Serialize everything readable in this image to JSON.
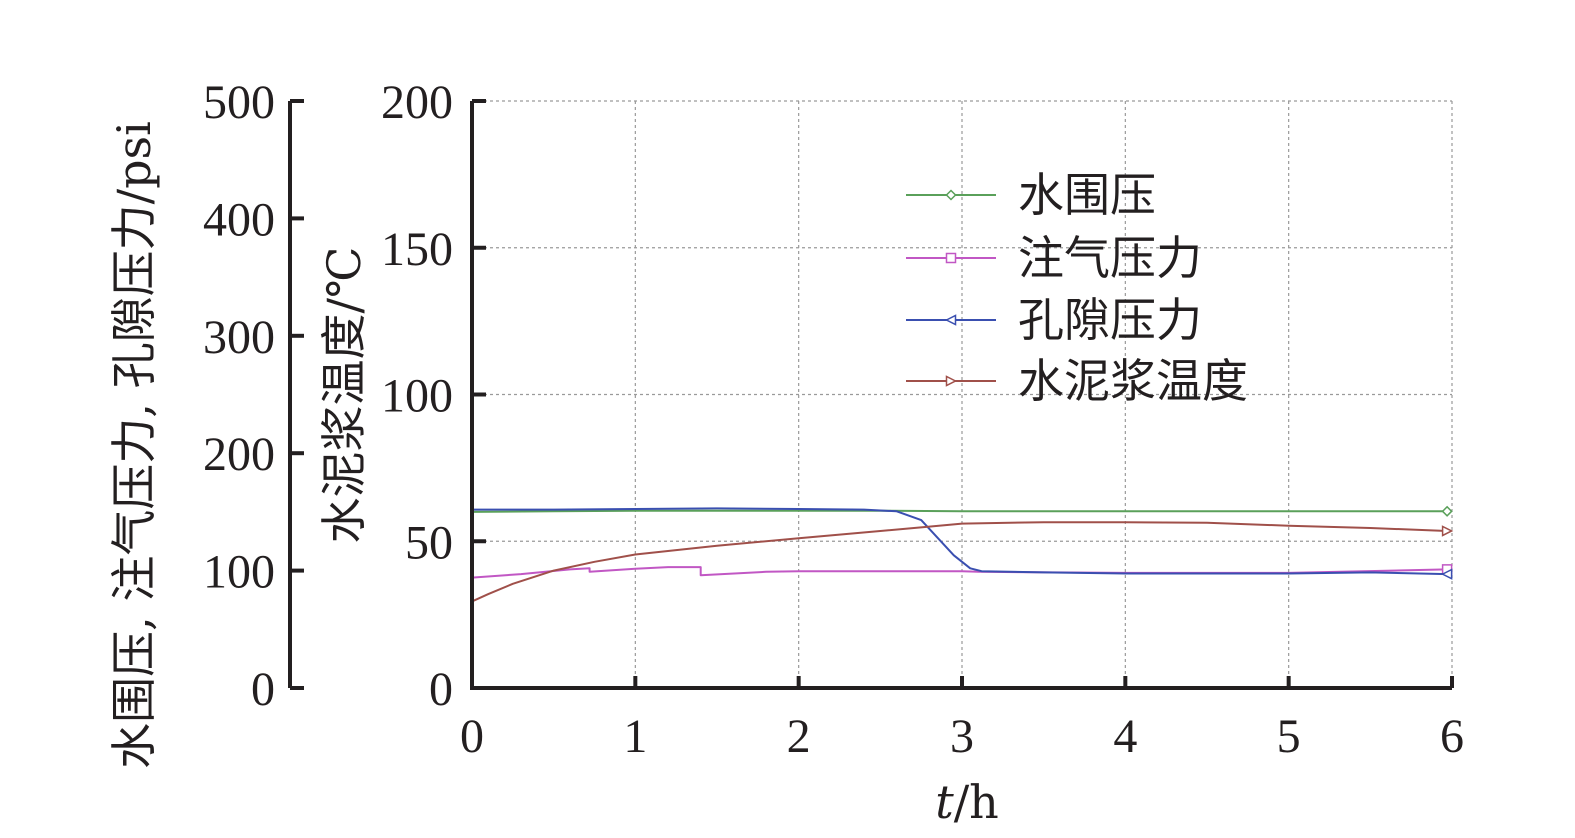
{
  "chart_data": {
    "type": "line",
    "xlabel_italic": "t",
    "xlabel_rest": "/h",
    "ylabel_right": "水泥浆温度/℃",
    "ylabel_left": "水围压, 注气压力, 孔隙压力/psi",
    "xlim": [
      0,
      6
    ],
    "ylim_right": [
      0,
      200
    ],
    "ylim_left": [
      0,
      500
    ],
    "x_ticks": [
      "0",
      "1",
      "2",
      "3",
      "4",
      "5",
      "6"
    ],
    "y_ticks_right": [
      "0",
      "50",
      "100",
      "150",
      "200"
    ],
    "y_ticks_left": [
      "0",
      "100",
      "200",
      "300",
      "400",
      "500"
    ],
    "grid": true,
    "legend_position": "upper-right",
    "series": [
      {
        "name": "水围压",
        "color": "#5aa05a",
        "marker": "diamond",
        "axis": "left",
        "points": [
          [
            0,
            150
          ],
          [
            0.5,
            150.5
          ],
          [
            1,
            151
          ],
          [
            1.5,
            151
          ],
          [
            2,
            151
          ],
          [
            2.5,
            151
          ],
          [
            3,
            150.5
          ],
          [
            3.5,
            150.5
          ],
          [
            4,
            150.5
          ],
          [
            4.5,
            150.5
          ],
          [
            5,
            150.5
          ],
          [
            5.5,
            150.5
          ],
          [
            5.97,
            150.5
          ]
        ]
      },
      {
        "name": "注气压力",
        "color": "#c157c4",
        "marker": "square",
        "axis": "left",
        "points": [
          [
            0,
            94
          ],
          [
            0.3,
            97
          ],
          [
            0.6,
            101
          ],
          [
            0.72,
            102
          ],
          [
            0.72,
            99
          ],
          [
            1,
            101.5
          ],
          [
            1.2,
            103
          ],
          [
            1.4,
            103
          ],
          [
            1.4,
            96
          ],
          [
            1.8,
            99
          ],
          [
            2,
            99.5
          ],
          [
            3,
            99.5
          ],
          [
            3.1,
            99
          ],
          [
            4,
            98
          ],
          [
            5,
            98
          ],
          [
            5.97,
            101
          ]
        ]
      },
      {
        "name": "孔隙压力",
        "color": "#3a4fb0",
        "marker": "triangle-left",
        "axis": "left",
        "points": [
          [
            0,
            152
          ],
          [
            0.5,
            152
          ],
          [
            1,
            152.5
          ],
          [
            1.5,
            153
          ],
          [
            2,
            152.5
          ],
          [
            2.4,
            152
          ],
          [
            2.6,
            150.5
          ],
          [
            2.75,
            143
          ],
          [
            2.85,
            128
          ],
          [
            2.95,
            113
          ],
          [
            3.05,
            102
          ],
          [
            3.12,
            99.5
          ],
          [
            3.5,
            98.5
          ],
          [
            4,
            97.5
          ],
          [
            4.5,
            97.5
          ],
          [
            5,
            97.5
          ],
          [
            5.5,
            98.5
          ],
          [
            5.97,
            97
          ]
        ]
      },
      {
        "name": "水泥浆温度",
        "color": "#a0504a",
        "marker": "triangle-right",
        "axis": "right",
        "points": [
          [
            0,
            29.5
          ],
          [
            0.1,
            32
          ],
          [
            0.25,
            35.5
          ],
          [
            0.5,
            40
          ],
          [
            0.75,
            43
          ],
          [
            1,
            45.5
          ],
          [
            1.5,
            48.5
          ],
          [
            2,
            51
          ],
          [
            2.5,
            53.5
          ],
          [
            2.8,
            55
          ],
          [
            3,
            56
          ],
          [
            3.5,
            56.5
          ],
          [
            4,
            56.5
          ],
          [
            4.5,
            56.3
          ],
          [
            5,
            55.3
          ],
          [
            5.5,
            54.5
          ],
          [
            5.97,
            53.5
          ]
        ]
      }
    ]
  }
}
